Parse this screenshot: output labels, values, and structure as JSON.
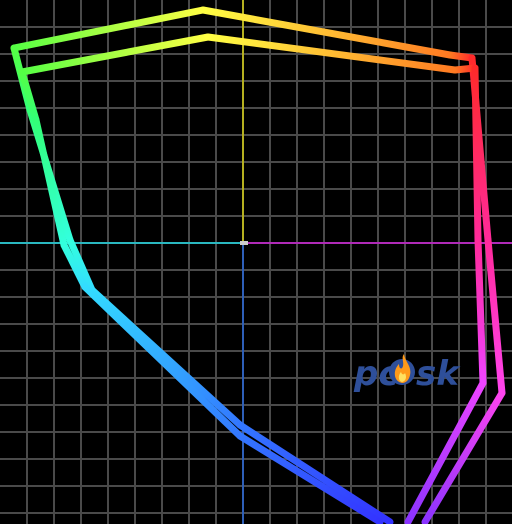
{
  "watermark": {
    "left": "pc",
    "right": "sk"
  }
}
